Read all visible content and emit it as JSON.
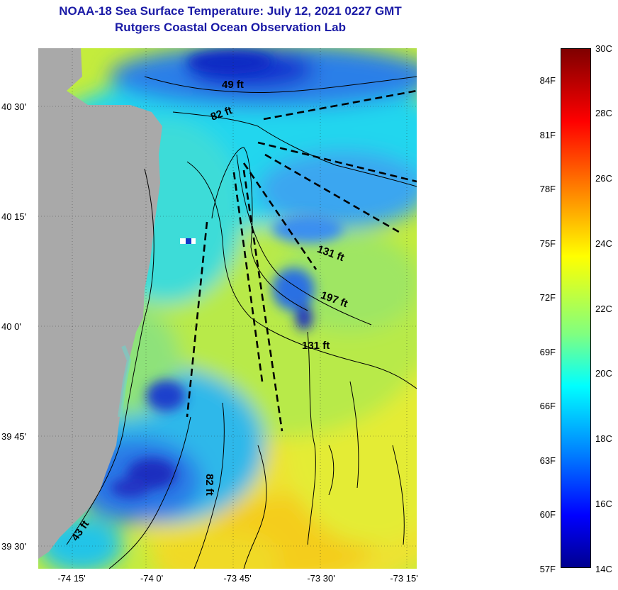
{
  "title": {
    "line1": "NOAA-18 Sea Surface Temperature:  July 12, 2021 0227 GMT",
    "line2": "Rutgers Coastal Ocean Observation Lab"
  },
  "colors": {
    "title": "#1a1aa6",
    "land": "#a9a9a9",
    "cold": "#0a1dbf",
    "cool": "#1e90ff",
    "cyan": "#13e3f0",
    "green": "#9fe05a",
    "yellow": "#e8ee30",
    "gold": "#f6d41c"
  },
  "map": {
    "lat_labels": [
      "40 30'",
      "40 15'",
      "40 0'",
      "39 45'",
      "39 30'"
    ],
    "lon_labels": [
      "-74 15'",
      "-74 0'",
      "-73 45'",
      "-73 30'",
      "-73 15'"
    ],
    "depth_labels": [
      "49 ft",
      "82 ft",
      "131 ft",
      "197 ft",
      "131 ft",
      "82 ft",
      "43 ft"
    ]
  },
  "colorbar": {
    "fahrenheit_labels": [
      "84F",
      "81F",
      "78F",
      "75F",
      "72F",
      "69F",
      "66F",
      "63F",
      "60F",
      "57F"
    ],
    "celsius_labels": [
      "30C",
      "28C",
      "26C",
      "24C",
      "22C",
      "20C",
      "18C",
      "16C",
      "14C"
    ],
    "range_celsius": [
      14,
      30
    ],
    "scale": "jet"
  }
}
